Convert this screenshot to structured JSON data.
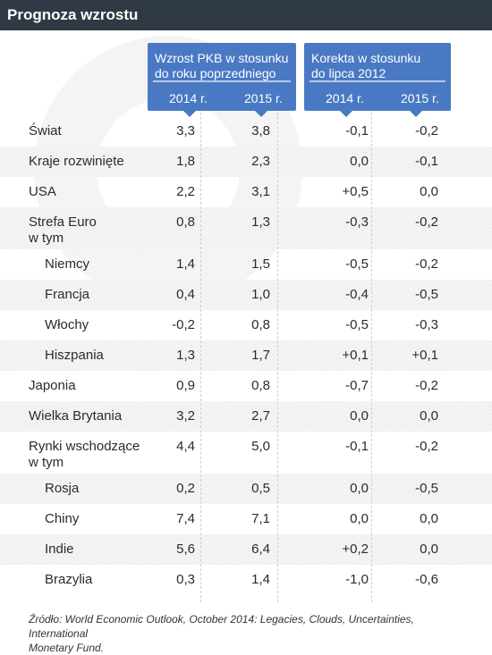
{
  "title": "Prognoza wzrostu",
  "headers": {
    "group1_line1": "Wzrost PKB w stosunku",
    "group1_line2": "do roku poprzedniego",
    "group2_line1": "Korekta w stosunku",
    "group2_line2": "do lipca 2012",
    "year_2014": "2014 r.",
    "year_2015": "2015 r."
  },
  "chart_data": {
    "type": "table",
    "columns": [
      "Wzrost PKB 2014 r.",
      "Wzrost PKB 2015 r.",
      "Korekta 2014 r.",
      "Korekta 2015 r."
    ],
    "rows": [
      {
        "label": "Świat",
        "values": [
          "3,3",
          "3,8",
          "-0,1",
          "-0,2"
        ]
      },
      {
        "label": "Kraje rozwinięte",
        "values": [
          "1,8",
          "2,3",
          "0,0",
          "-0,1"
        ]
      },
      {
        "label": "USA",
        "values": [
          "2,2",
          "3,1",
          "+0,5",
          "0,0"
        ]
      },
      {
        "label": "Strefa Euro",
        "sublabel": "w tym",
        "values": [
          "0,8",
          "1,3",
          "-0,3",
          "-0,2"
        ]
      },
      {
        "label": "Niemcy",
        "values": [
          "1,4",
          "1,5",
          "-0,5",
          "-0,2"
        ]
      },
      {
        "label": "Francja",
        "values": [
          "0,4",
          "1,0",
          "-0,4",
          "-0,5"
        ]
      },
      {
        "label": "Włochy",
        "values": [
          "-0,2",
          "0,8",
          "-0,5",
          "-0,3"
        ]
      },
      {
        "label": "Hiszpania",
        "values": [
          "1,3",
          "1,7",
          "+0,1",
          "+0,1"
        ]
      },
      {
        "label": "Japonia",
        "values": [
          "0,9",
          "0,8",
          "-0,7",
          "-0,2"
        ]
      },
      {
        "label": "Wielka Brytania",
        "values": [
          "3,2",
          "2,7",
          "0,0",
          "0,0"
        ]
      },
      {
        "label": "Rynki wschodzące",
        "sublabel": "w tym",
        "values": [
          "4,4",
          "5,0",
          "-0,1",
          "-0,2"
        ]
      },
      {
        "label": "Rosja",
        "values": [
          "0,2",
          "0,5",
          "0,0",
          "-0,5"
        ]
      },
      {
        "label": "Chiny",
        "values": [
          "7,4",
          "7,1",
          "0,0",
          "0,0"
        ]
      },
      {
        "label": "Indie",
        "values": [
          "5,6",
          "6,4",
          "+0,2",
          "0,0"
        ]
      },
      {
        "label": "Brazylia",
        "values": [
          "0,3",
          "1,4",
          "-1,0",
          "-0,6"
        ]
      }
    ]
  },
  "source_line1": "Źródło: World Economic Outlook, October 2014: Legacies, Clouds, Uncertainties, International",
  "source_line2": "Monetary Fund.",
  "colors": {
    "header_bar": "#2f3a44",
    "header_box": "#4a79c4",
    "row_shade": "#efefef",
    "text": "#2b2b2b"
  }
}
